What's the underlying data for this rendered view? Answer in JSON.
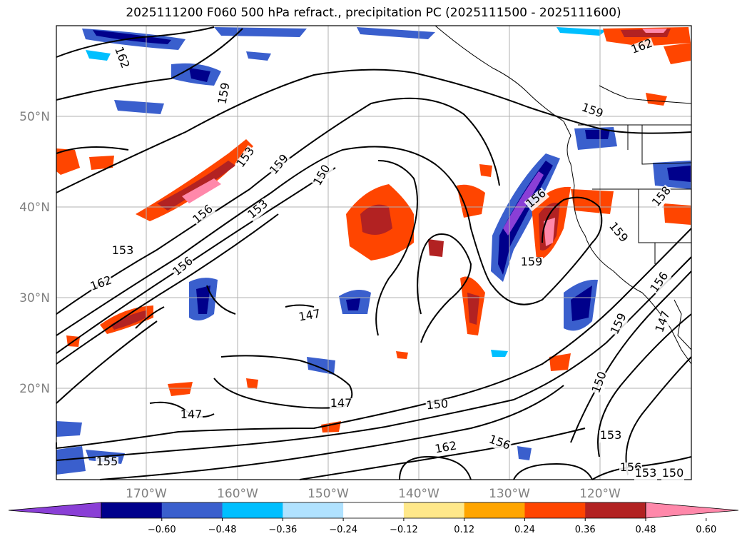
{
  "title": "2025111200 F060 500 hPa refract., precipitation PC (2025111500 - 2025111600)",
  "lat_labels": [
    "50°N",
    "40°N",
    "30°N",
    "20°N"
  ],
  "lon_labels": [
    "170°W",
    "160°W",
    "150°W",
    "140°W",
    "130°W",
    "120°W"
  ],
  "contour_labels": [
    "162",
    "159",
    "153",
    "159",
    "150",
    "156",
    "153",
    "156",
    "153",
    "162",
    "147",
    "147",
    "147",
    "150",
    "162",
    "156",
    "159",
    "159",
    "156",
    "156",
    "147",
    "159",
    "150",
    "153",
    "156",
    "153",
    "150",
    "162",
    "159",
    "158",
    "155"
  ],
  "colorbar": {
    "ticks": [
      "−0.60",
      "−0.48",
      "−0.36",
      "−0.24",
      "−0.12",
      "0.12",
      "0.24",
      "0.36",
      "0.48",
      "0.60"
    ],
    "colors": [
      "#8a3fd6",
      "#00008b",
      "#3a5fcd",
      "#00bfff",
      "#b0e2ff",
      "#ffffff",
      "#ffe88a",
      "#ffa500",
      "#ff4500",
      "#b22222",
      "#ff88aa"
    ]
  }
}
